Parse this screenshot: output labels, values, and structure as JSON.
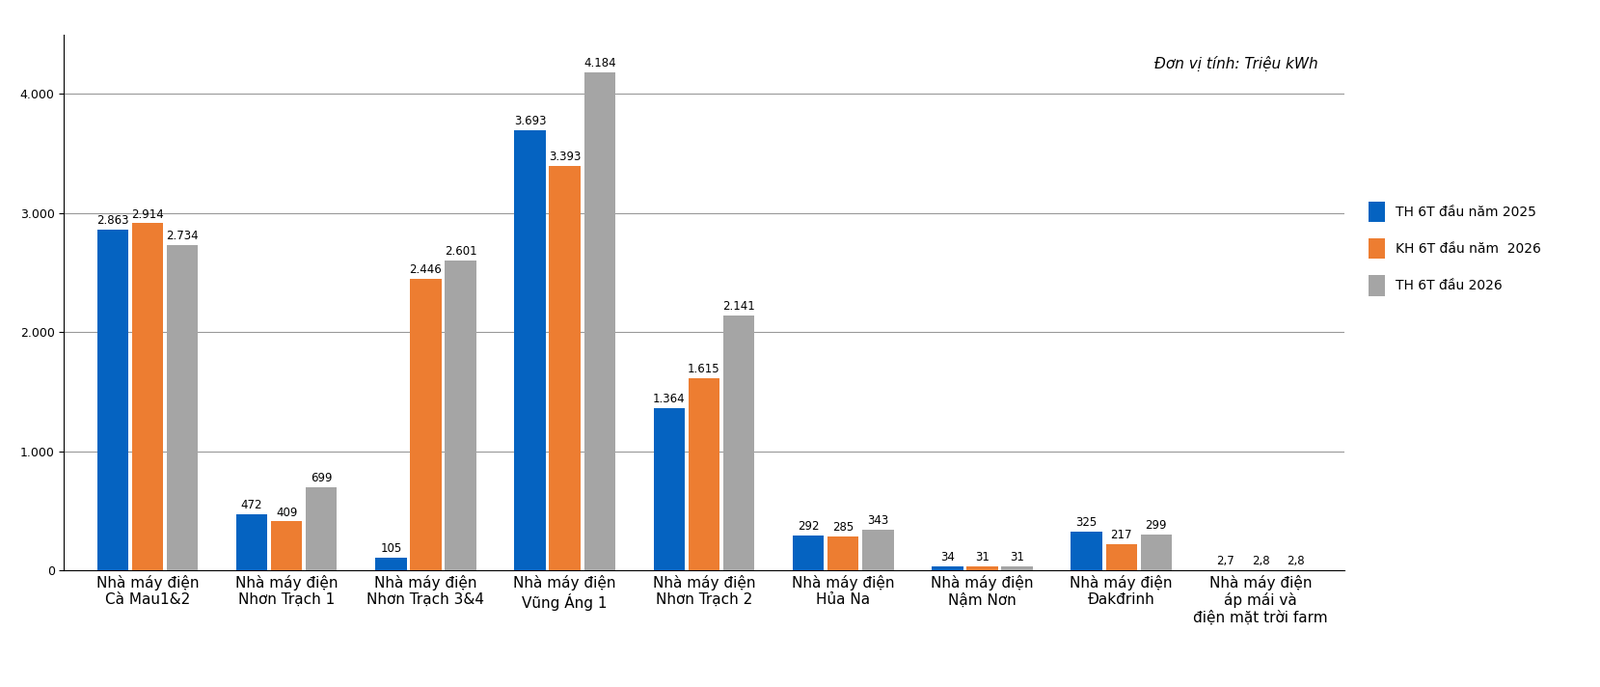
{
  "chart_data": {
    "type": "bar",
    "annotations": [
      "Đơn vị tính: Triệu kWh"
    ],
    "categories": [
      "Nhà máy điện\nCà Mau1&2",
      "Nhà máy điện\nNhơn Trạch 1",
      "Nhà máy điện\nNhơn Trạch 3&4",
      "Nhà máy điện\nVũng Áng 1",
      "Nhà máy điện\nNhơn Trạch 2",
      "Nhà máy điện\nHủa Na",
      "Nhà máy điện\nNậm Nơn",
      "Nhà máy điện\nĐakđrinh",
      "Nhà máy điện\náp mái và\nđiện mặt trời farm"
    ],
    "series": [
      {
        "name": "TH 6T đầu năm 2025",
        "color": "#0563c1",
        "values": [
          2863,
          472,
          105,
          3693,
          1364,
          292,
          34,
          325,
          2.7
        ],
        "value_labels": [
          "2.863",
          "472",
          "105",
          "3.693",
          "1.364",
          "292",
          "34",
          "325",
          "2,7"
        ]
      },
      {
        "name": "KH 6T đầu năm  2026",
        "color": "#ed7d31",
        "values": [
          2914,
          409,
          2446,
          3393,
          1615,
          285,
          31,
          217,
          2.8
        ],
        "value_labels": [
          "2.914",
          "409",
          "2.446",
          "3.393",
          "1.615",
          "285",
          "31",
          "217",
          "2,8"
        ]
      },
      {
        "name": "TH 6T đầu 2026",
        "color": "#a5a5a5",
        "values": [
          2734,
          699,
          2601,
          4184,
          2141,
          343,
          31,
          299,
          2.8
        ],
        "value_labels": [
          "2.734",
          "699",
          "2.601",
          "4.184",
          "2.141",
          "343",
          "31",
          "299",
          "2,8"
        ]
      }
    ],
    "ylim": [
      0,
      4500
    ],
    "yticks": [
      0,
      {
        "value": 1000,
        "label": "1.000"
      },
      {
        "value": 2000,
        "label": "2.000"
      },
      {
        "value": 3000,
        "label": "3.000"
      },
      {
        "value": 4000,
        "label": "4.000"
      }
    ],
    "grid": true,
    "legend": "right",
    "data_labels": true
  }
}
